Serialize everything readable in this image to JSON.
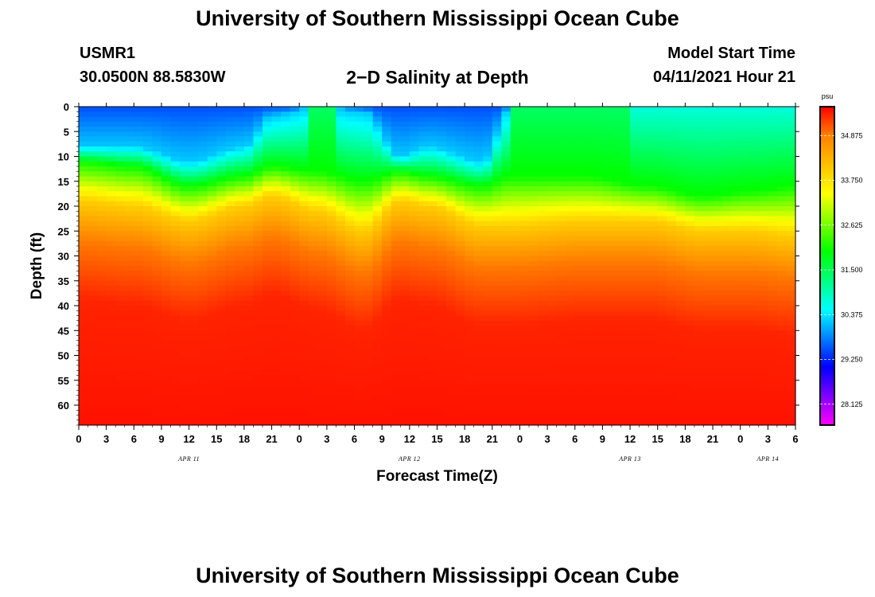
{
  "header": {
    "title": "University of Southern Mississippi Ocean Cube",
    "station_id": "USMR1",
    "coords": "30.0500N  88.5830W",
    "subtitle": "2−D Salinity at Depth",
    "model_start_label": "Model Start Time",
    "model_start_value": "04/11/2021 Hour 21"
  },
  "footer": {
    "title": "University of Southern Mississippi Ocean Cube"
  },
  "colors": {
    "scale": [
      "#ff00ff",
      "#8000ff",
      "#0000ff",
      "#0080ff",
      "#00ffff",
      "#00ff80",
      "#00ff00",
      "#80ff00",
      "#ffff00",
      "#ffc000",
      "#ff8000",
      "#ff0000"
    ]
  },
  "chart_data": {
    "type": "heatmap",
    "title": "2−D Salinity at Depth",
    "xlabel": "Forecast Time(Z)",
    "ylabel": "Depth (ft)",
    "x_range_hours": [
      0,
      78
    ],
    "y_range_ft": [
      0,
      64
    ],
    "x_ticks": [
      {
        "hour": 0,
        "label": "0"
      },
      {
        "hour": 3,
        "label": "3"
      },
      {
        "hour": 6,
        "label": "6"
      },
      {
        "hour": 9,
        "label": "9"
      },
      {
        "hour": 12,
        "label": "12"
      },
      {
        "hour": 15,
        "label": "15"
      },
      {
        "hour": 18,
        "label": "18"
      },
      {
        "hour": 21,
        "label": "21"
      },
      {
        "hour": 24,
        "label": "0"
      },
      {
        "hour": 27,
        "label": "3"
      },
      {
        "hour": 30,
        "label": "6"
      },
      {
        "hour": 33,
        "label": "9"
      },
      {
        "hour": 36,
        "label": "12"
      },
      {
        "hour": 39,
        "label": "15"
      },
      {
        "hour": 42,
        "label": "18"
      },
      {
        "hour": 45,
        "label": "21"
      },
      {
        "hour": 48,
        "label": "0"
      },
      {
        "hour": 51,
        "label": "3"
      },
      {
        "hour": 54,
        "label": "6"
      },
      {
        "hour": 57,
        "label": "9"
      },
      {
        "hour": 60,
        "label": "12"
      },
      {
        "hour": 63,
        "label": "15"
      },
      {
        "hour": 66,
        "label": "18"
      },
      {
        "hour": 69,
        "label": "21"
      },
      {
        "hour": 72,
        "label": "0"
      },
      {
        "hour": 75,
        "label": "3"
      },
      {
        "hour": 78,
        "label": "6"
      }
    ],
    "y_ticks": [
      0,
      5,
      10,
      15,
      20,
      25,
      30,
      35,
      40,
      45,
      50,
      55,
      60
    ],
    "date_labels": [
      {
        "hour": 12,
        "label": "APR 11"
      },
      {
        "hour": 36,
        "label": "APR 12"
      },
      {
        "hour": 60,
        "label": "APR 13"
      },
      {
        "hour": 75,
        "label": "APR 14"
      }
    ],
    "colorbar": {
      "units": "psu",
      "min": 27.6,
      "max": 35.6,
      "labels": [
        "34.875",
        "33.750",
        "32.625",
        "31.500",
        "30.375",
        "29.250",
        "28.125"
      ]
    },
    "isohaline_depths_ft": [
      {
        "hour": 0,
        "s30": 8,
        "s32": 11,
        "s34": 19
      },
      {
        "hour": 6,
        "s30": 8,
        "s32": 12,
        "s34": 20
      },
      {
        "hour": 12,
        "s30": 11,
        "s32": 16,
        "s34": 23
      },
      {
        "hour": 18,
        "s30": 8,
        "s32": 14,
        "s34": 20
      },
      {
        "hour": 21,
        "s30": 2,
        "s32": 12,
        "s34": 18
      },
      {
        "hour": 26,
        "s30": 0,
        "s32": 13,
        "s34": 21
      },
      {
        "hour": 31,
        "s30": 1,
        "s32": 15,
        "s34": 25
      },
      {
        "hour": 35,
        "s30": 10,
        "s32": 13,
        "s34": 19
      },
      {
        "hour": 38,
        "s30": 8,
        "s32": 14,
        "s34": 20
      },
      {
        "hour": 44,
        "s30": 11,
        "s32": 16,
        "s34": 24
      },
      {
        "hour": 47,
        "s30": 0,
        "s32": 14,
        "s34": 24
      },
      {
        "hour": 55,
        "s30": 0,
        "s32": 14,
        "s34": 23
      },
      {
        "hour": 62,
        "s30": 0,
        "s32": 16,
        "s34": 23
      },
      {
        "hour": 68,
        "s30": 0,
        "s32": 18,
        "s34": 25
      },
      {
        "hour": 73,
        "s30": 0,
        "s32": 17,
        "s34": 25
      },
      {
        "hour": 78,
        "s30": 0,
        "s32": 16,
        "s34": 26
      }
    ]
  }
}
